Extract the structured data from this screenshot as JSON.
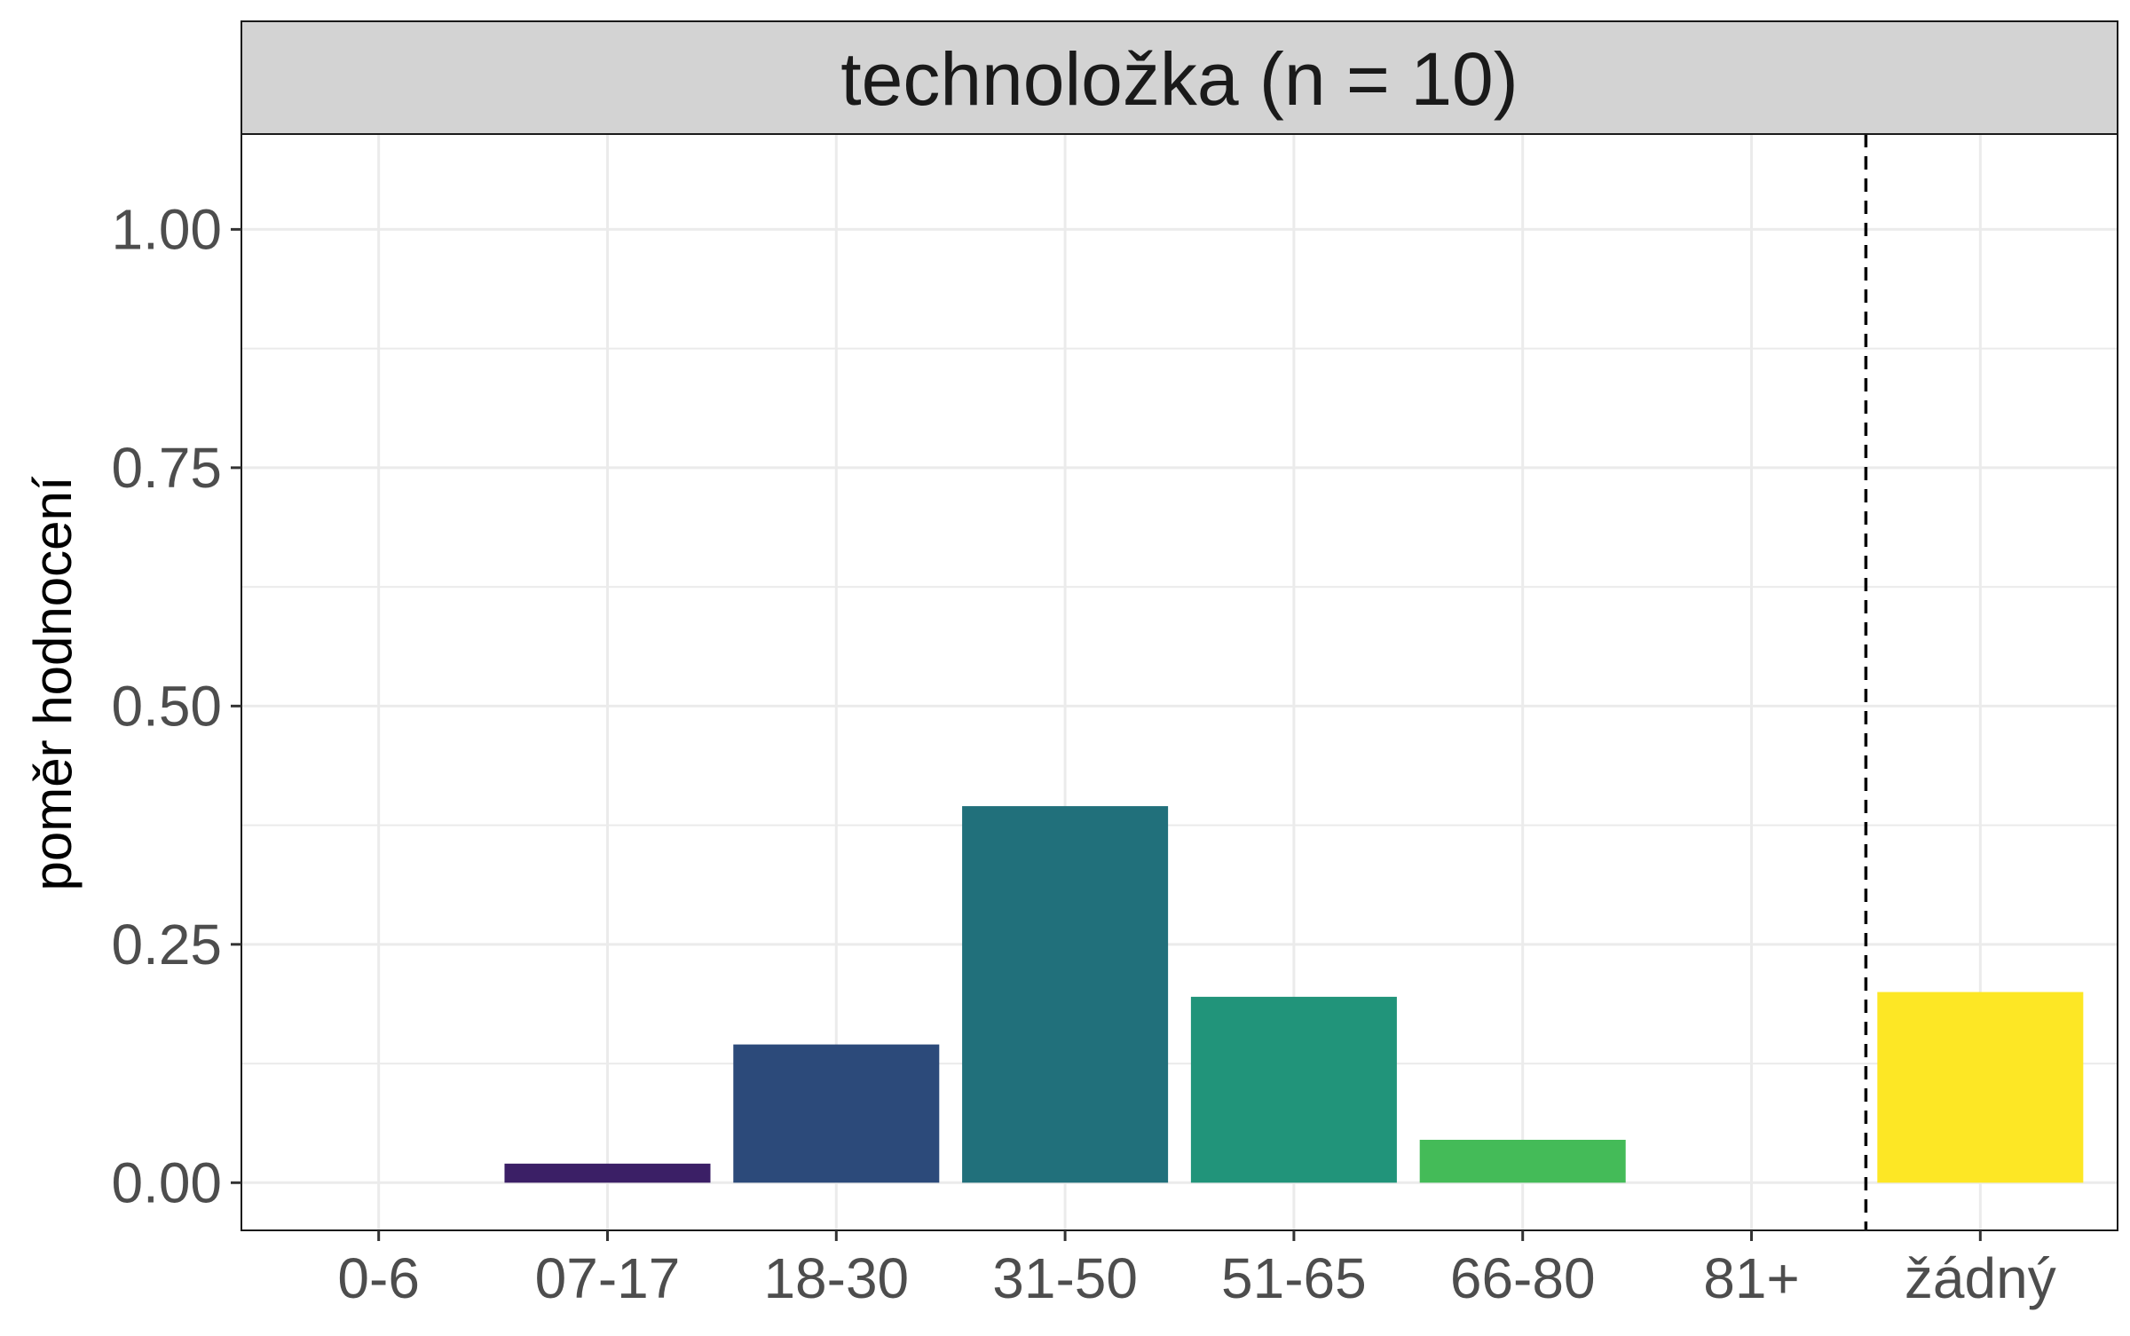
{
  "chart_data": {
    "type": "bar",
    "title": "technoložka (n = 10)",
    "xlabel": "",
    "ylabel": "poměr hodnocení",
    "categories": [
      "0-6",
      "07-17",
      "18-30",
      "31-50",
      "51-65",
      "66-80",
      "81+",
      "žádný"
    ],
    "values": [
      0.0,
      0.02,
      0.145,
      0.395,
      0.195,
      0.045,
      0.0,
      0.2
    ],
    "ylim": [
      -0.05,
      1.1
    ],
    "yticks": [
      0.0,
      0.25,
      0.5,
      0.75,
      1.0
    ],
    "ytick_labels": [
      "0.00",
      "0.25",
      "0.50",
      "0.75",
      "1.00"
    ],
    "grid": true,
    "reference_line": {
      "between": [
        "81+",
        "žádný"
      ],
      "style": "dashed"
    },
    "colors": [
      "#440154",
      "#3b1f66",
      "#2c4a7a",
      "#21707b",
      "#21947a",
      "#44bb58",
      "#a7d230",
      "#fde725"
    ]
  }
}
